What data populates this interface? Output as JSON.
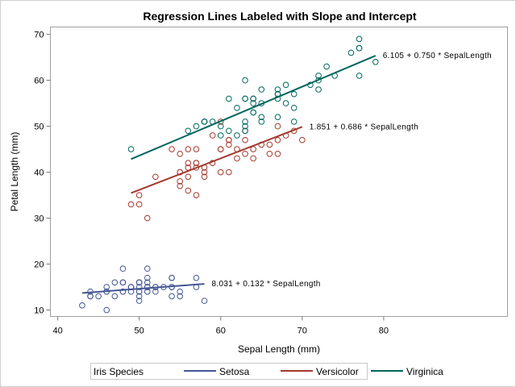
{
  "chart_data": {
    "type": "scatter",
    "title": "Regression Lines Labeled with Slope and Intercept",
    "xlabel": "Sepal Length (mm)",
    "ylabel": "Petal Length (mm)",
    "xlim": [
      39.1,
      95.2
    ],
    "ylim": [
      8.6,
      71.6
    ],
    "xticks": [
      40,
      50,
      60,
      70,
      80
    ],
    "yticks": [
      10,
      20,
      30,
      40,
      50,
      60,
      70
    ],
    "grid": false,
    "legend": {
      "title": "Iris Species",
      "placement": "bottom"
    },
    "series": [
      {
        "name": "Setosa",
        "color": "#445694",
        "line": {
          "intercept": 8.031,
          "slope": 0.132,
          "xrange": [
            43,
            58
          ],
          "label": "8.031 + 0.132 * SepalLength"
        },
        "points": [
          [
            51,
            14
          ],
          [
            49,
            14
          ],
          [
            47,
            13
          ],
          [
            46,
            15
          ],
          [
            50,
            14
          ],
          [
            54,
            17
          ],
          [
            46,
            14
          ],
          [
            50,
            15
          ],
          [
            44,
            14
          ],
          [
            49,
            15
          ],
          [
            54,
            15
          ],
          [
            48,
            16
          ],
          [
            48,
            14
          ],
          [
            43,
            11
          ],
          [
            58,
            12
          ],
          [
            57,
            15
          ],
          [
            54,
            13
          ],
          [
            51,
            14
          ],
          [
            57,
            17
          ],
          [
            51,
            15
          ],
          [
            54,
            17
          ],
          [
            51,
            15
          ],
          [
            46,
            10
          ],
          [
            51,
            17
          ],
          [
            48,
            19
          ],
          [
            50,
            16
          ],
          [
            50,
            16
          ],
          [
            52,
            15
          ],
          [
            52,
            14
          ],
          [
            47,
            16
          ],
          [
            48,
            16
          ],
          [
            54,
            15
          ],
          [
            52,
            15
          ],
          [
            55,
            14
          ],
          [
            49,
            15
          ],
          [
            50,
            12
          ],
          [
            55,
            13
          ],
          [
            49,
            15
          ],
          [
            44,
            13
          ],
          [
            51,
            15
          ],
          [
            50,
            13
          ],
          [
            45,
            13
          ],
          [
            44,
            13
          ],
          [
            50,
            16
          ],
          [
            51,
            19
          ],
          [
            48,
            14
          ],
          [
            51,
            16
          ],
          [
            46,
            14
          ],
          [
            53,
            15
          ],
          [
            50,
            14
          ]
        ]
      },
      {
        "name": "Versicolor",
        "color": "#A23A2E",
        "line": {
          "intercept": 1.851,
          "slope": 0.686,
          "xrange": [
            49,
            70
          ],
          "label": "1.851 + 0.686 * SepalLength"
        },
        "points": [
          [
            70,
            47
          ],
          [
            64,
            45
          ],
          [
            69,
            49
          ],
          [
            55,
            40
          ],
          [
            65,
            46
          ],
          [
            57,
            45
          ],
          [
            63,
            47
          ],
          [
            49,
            33
          ],
          [
            66,
            46
          ],
          [
            52,
            39
          ],
          [
            50,
            35
          ],
          [
            59,
            42
          ],
          [
            60,
            40
          ],
          [
            61,
            47
          ],
          [
            56,
            36
          ],
          [
            67,
            44
          ],
          [
            56,
            45
          ],
          [
            58,
            41
          ],
          [
            62,
            45
          ],
          [
            56,
            39
          ],
          [
            59,
            48
          ],
          [
            61,
            40
          ],
          [
            63,
            49
          ],
          [
            61,
            47
          ],
          [
            64,
            43
          ],
          [
            66,
            44
          ],
          [
            68,
            48
          ],
          [
            67,
            50
          ],
          [
            60,
            45
          ],
          [
            57,
            35
          ],
          [
            55,
            38
          ],
          [
            55,
            37
          ],
          [
            58,
            39
          ],
          [
            60,
            51
          ],
          [
            54,
            45
          ],
          [
            60,
            45
          ],
          [
            67,
            47
          ],
          [
            63,
            44
          ],
          [
            56,
            41
          ],
          [
            55,
            40
          ],
          [
            55,
            44
          ],
          [
            61,
            46
          ],
          [
            58,
            40
          ],
          [
            50,
            33
          ],
          [
            56,
            42
          ],
          [
            57,
            42
          ],
          [
            57,
            42
          ],
          [
            62,
            43
          ],
          [
            51,
            30
          ],
          [
            57,
            41
          ]
        ]
      },
      {
        "name": "Virginica",
        "color": "#01665E",
        "line": {
          "intercept": 6.105,
          "slope": 0.75,
          "xrange": [
            49,
            79
          ],
          "label": "6.105 + 0.750 * SepalLength"
        },
        "points": [
          [
            63,
            60
          ],
          [
            58,
            51
          ],
          [
            71,
            59
          ],
          [
            63,
            56
          ],
          [
            65,
            58
          ],
          [
            76,
            66
          ],
          [
            49,
            45
          ],
          [
            73,
            63
          ],
          [
            67,
            58
          ],
          [
            72,
            61
          ],
          [
            65,
            51
          ],
          [
            64,
            53
          ],
          [
            68,
            55
          ],
          [
            57,
            50
          ],
          [
            58,
            51
          ],
          [
            64,
            53
          ],
          [
            65,
            55
          ],
          [
            77,
            67
          ],
          [
            77,
            69
          ],
          [
            60,
            50
          ],
          [
            69,
            57
          ],
          [
            56,
            49
          ],
          [
            77,
            67
          ],
          [
            63,
            49
          ],
          [
            67,
            57
          ],
          [
            72,
            60
          ],
          [
            62,
            48
          ],
          [
            61,
            49
          ],
          [
            64,
            56
          ],
          [
            72,
            58
          ],
          [
            74,
            61
          ],
          [
            79,
            64
          ],
          [
            64,
            56
          ],
          [
            63,
            51
          ],
          [
            61,
            56
          ],
          [
            77,
            61
          ],
          [
            63,
            56
          ],
          [
            64,
            55
          ],
          [
            60,
            48
          ],
          [
            69,
            54
          ],
          [
            67,
            56
          ],
          [
            69,
            51
          ],
          [
            58,
            51
          ],
          [
            68,
            59
          ],
          [
            67,
            57
          ],
          [
            67,
            52
          ],
          [
            63,
            50
          ],
          [
            65,
            52
          ],
          [
            62,
            54
          ],
          [
            59,
            51
          ]
        ]
      }
    ]
  }
}
